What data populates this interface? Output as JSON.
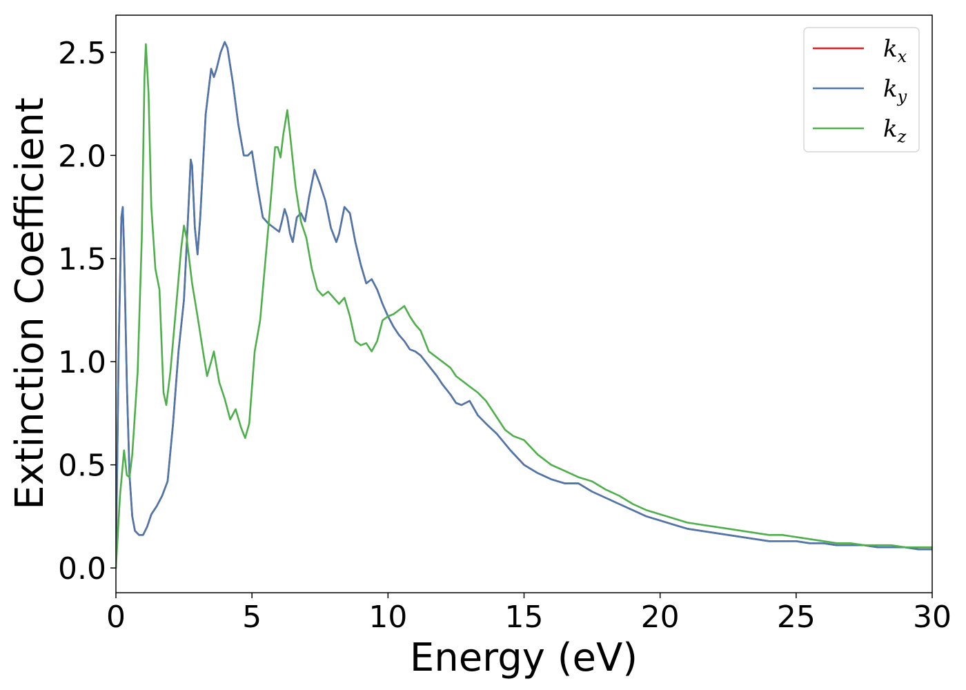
{
  "chart_data": {
    "type": "line",
    "title": "",
    "xlabel": "Energy (eV)",
    "ylabel": "Extinction Coefficient",
    "xlim": [
      0,
      30
    ],
    "ylim": [
      -0.12,
      2.68
    ],
    "xticks": [
      0,
      5,
      10,
      15,
      20,
      25,
      30
    ],
    "xtick_labels": [
      "0",
      "5",
      "10",
      "15",
      "20",
      "25",
      "30"
    ],
    "yticks": [
      0.0,
      0.5,
      1.0,
      1.5,
      2.0,
      2.5
    ],
    "ytick_labels": [
      "0.0",
      "0.5",
      "1.0",
      "1.5",
      "2.0",
      "2.5"
    ],
    "grid": false,
    "legend_position": "top-right",
    "series": [
      {
        "name": "kx",
        "label_main": "k",
        "label_sub": "x",
        "color": "#e41a1c",
        "x": [
          0,
          0.1,
          0.2,
          0.25,
          0.3,
          0.4,
          0.5,
          0.6,
          0.7,
          0.85,
          1.0,
          1.15,
          1.3,
          1.5,
          1.7,
          1.9,
          2.1,
          2.3,
          2.5,
          2.65,
          2.75,
          2.8,
          2.9,
          3.0,
          3.1,
          3.3,
          3.5,
          3.6,
          3.7,
          3.85,
          4.0,
          4.1,
          4.3,
          4.5,
          4.7,
          4.85,
          5.0,
          5.2,
          5.4,
          5.6,
          5.8,
          6.0,
          6.1,
          6.2,
          6.3,
          6.4,
          6.5,
          6.65,
          6.8,
          6.95,
          7.1,
          7.3,
          7.5,
          7.7,
          7.9,
          8.1,
          8.2,
          8.4,
          8.6,
          8.8,
          9.0,
          9.2,
          9.4,
          9.6,
          9.8,
          10.0,
          10.2,
          10.4,
          10.6,
          10.8,
          11.0,
          11.2,
          11.5,
          11.8,
          12.0,
          12.3,
          12.5,
          12.7,
          13.0,
          13.3,
          13.6,
          14.0,
          14.5,
          15.0,
          15.5,
          16.0,
          16.5,
          17.0,
          17.5,
          18.0,
          18.5,
          19.0,
          19.5,
          20.0,
          20.5,
          21.0,
          21.5,
          22.0,
          22.5,
          23.0,
          23.5,
          24.0,
          24.5,
          25.0,
          25.5,
          26.0,
          26.5,
          27.0,
          27.5,
          28.0,
          28.5,
          29.0,
          29.5,
          30.0
        ],
        "y": [
          0.0,
          1.05,
          1.7,
          1.75,
          1.55,
          0.9,
          0.45,
          0.25,
          0.18,
          0.16,
          0.16,
          0.2,
          0.26,
          0.3,
          0.35,
          0.42,
          0.7,
          1.05,
          1.3,
          1.7,
          1.98,
          1.95,
          1.65,
          1.52,
          1.7,
          2.2,
          2.42,
          2.38,
          2.42,
          2.5,
          2.55,
          2.52,
          2.35,
          2.15,
          2.0,
          2.0,
          2.02,
          1.85,
          1.7,
          1.67,
          1.65,
          1.63,
          1.68,
          1.74,
          1.7,
          1.62,
          1.58,
          1.7,
          1.72,
          1.68,
          1.8,
          1.93,
          1.86,
          1.78,
          1.65,
          1.58,
          1.62,
          1.75,
          1.72,
          1.58,
          1.47,
          1.38,
          1.4,
          1.35,
          1.28,
          1.22,
          1.17,
          1.13,
          1.1,
          1.06,
          1.05,
          1.03,
          0.98,
          0.93,
          0.89,
          0.84,
          0.8,
          0.79,
          0.81,
          0.74,
          0.7,
          0.65,
          0.57,
          0.5,
          0.46,
          0.43,
          0.41,
          0.41,
          0.37,
          0.34,
          0.31,
          0.28,
          0.25,
          0.23,
          0.21,
          0.19,
          0.18,
          0.17,
          0.16,
          0.15,
          0.14,
          0.13,
          0.13,
          0.13,
          0.12,
          0.12,
          0.11,
          0.11,
          0.11,
          0.1,
          0.1,
          0.1,
          0.09,
          0.09
        ]
      },
      {
        "name": "ky",
        "label_main": "k",
        "label_sub": "y",
        "color": "#4a78ad",
        "x": [
          0,
          0.1,
          0.2,
          0.25,
          0.3,
          0.4,
          0.5,
          0.6,
          0.7,
          0.85,
          1.0,
          1.15,
          1.3,
          1.5,
          1.7,
          1.9,
          2.1,
          2.3,
          2.5,
          2.65,
          2.75,
          2.8,
          2.9,
          3.0,
          3.1,
          3.3,
          3.5,
          3.6,
          3.7,
          3.85,
          4.0,
          4.1,
          4.3,
          4.5,
          4.7,
          4.85,
          5.0,
          5.2,
          5.4,
          5.6,
          5.8,
          6.0,
          6.1,
          6.2,
          6.3,
          6.4,
          6.5,
          6.65,
          6.8,
          6.95,
          7.1,
          7.3,
          7.5,
          7.7,
          7.9,
          8.1,
          8.2,
          8.4,
          8.6,
          8.8,
          9.0,
          9.2,
          9.4,
          9.6,
          9.8,
          10.0,
          10.2,
          10.4,
          10.6,
          10.8,
          11.0,
          11.2,
          11.5,
          11.8,
          12.0,
          12.3,
          12.5,
          12.7,
          13.0,
          13.3,
          13.6,
          14.0,
          14.5,
          15.0,
          15.5,
          16.0,
          16.5,
          17.0,
          17.5,
          18.0,
          18.5,
          19.0,
          19.5,
          20.0,
          20.5,
          21.0,
          21.5,
          22.0,
          22.5,
          23.0,
          23.5,
          24.0,
          24.5,
          25.0,
          25.5,
          26.0,
          26.5,
          27.0,
          27.5,
          28.0,
          28.5,
          29.0,
          29.5,
          30.0
        ],
        "y": [
          0.0,
          1.05,
          1.7,
          1.75,
          1.55,
          0.9,
          0.45,
          0.25,
          0.18,
          0.16,
          0.16,
          0.2,
          0.26,
          0.3,
          0.35,
          0.42,
          0.7,
          1.05,
          1.3,
          1.7,
          1.98,
          1.95,
          1.65,
          1.52,
          1.7,
          2.2,
          2.42,
          2.38,
          2.42,
          2.5,
          2.55,
          2.52,
          2.35,
          2.15,
          2.0,
          2.0,
          2.02,
          1.85,
          1.7,
          1.67,
          1.65,
          1.63,
          1.68,
          1.74,
          1.7,
          1.62,
          1.58,
          1.7,
          1.72,
          1.68,
          1.8,
          1.93,
          1.86,
          1.78,
          1.65,
          1.58,
          1.62,
          1.75,
          1.72,
          1.58,
          1.47,
          1.38,
          1.4,
          1.35,
          1.28,
          1.22,
          1.17,
          1.13,
          1.1,
          1.06,
          1.05,
          1.03,
          0.98,
          0.93,
          0.89,
          0.84,
          0.8,
          0.79,
          0.81,
          0.74,
          0.7,
          0.65,
          0.57,
          0.5,
          0.46,
          0.43,
          0.41,
          0.41,
          0.37,
          0.34,
          0.31,
          0.28,
          0.25,
          0.23,
          0.21,
          0.19,
          0.18,
          0.17,
          0.16,
          0.15,
          0.14,
          0.13,
          0.13,
          0.13,
          0.12,
          0.12,
          0.11,
          0.11,
          0.11,
          0.1,
          0.1,
          0.1,
          0.09,
          0.09
        ]
      },
      {
        "name": "kz",
        "label_main": "k",
        "label_sub": "z",
        "color": "#4daf4a",
        "x": [
          0,
          0.15,
          0.3,
          0.4,
          0.5,
          0.6,
          0.8,
          0.95,
          1.05,
          1.1,
          1.2,
          1.3,
          1.45,
          1.6,
          1.75,
          1.85,
          2.0,
          2.2,
          2.4,
          2.5,
          2.6,
          2.8,
          3.0,
          3.2,
          3.35,
          3.5,
          3.6,
          3.8,
          4.0,
          4.2,
          4.4,
          4.6,
          4.75,
          4.9,
          5.1,
          5.3,
          5.5,
          5.7,
          5.85,
          5.95,
          6.05,
          6.15,
          6.3,
          6.4,
          6.6,
          6.8,
          7.0,
          7.2,
          7.4,
          7.6,
          7.8,
          8.0,
          8.2,
          8.4,
          8.6,
          8.8,
          9.0,
          9.2,
          9.4,
          9.6,
          9.8,
          10.0,
          10.2,
          10.4,
          10.6,
          10.8,
          11.0,
          11.2,
          11.5,
          11.8,
          12.0,
          12.3,
          12.5,
          12.7,
          13.0,
          13.3,
          13.6,
          14.0,
          14.3,
          14.6,
          15.0,
          15.5,
          16.0,
          16.5,
          17.0,
          17.5,
          18.0,
          18.5,
          19.0,
          19.5,
          20.0,
          20.5,
          21.0,
          21.5,
          22.0,
          22.5,
          23.0,
          23.5,
          24.0,
          24.5,
          25.0,
          25.5,
          26.0,
          26.5,
          27.0,
          27.5,
          28.0,
          28.5,
          29.0,
          29.5,
          30.0
        ],
        "y": [
          0.0,
          0.35,
          0.57,
          0.45,
          0.44,
          0.55,
          0.95,
          1.6,
          2.38,
          2.54,
          2.3,
          1.75,
          1.45,
          1.35,
          0.85,
          0.79,
          0.95,
          1.25,
          1.55,
          1.66,
          1.6,
          1.38,
          1.22,
          1.05,
          0.93,
          1.0,
          1.05,
          0.9,
          0.82,
          0.72,
          0.77,
          0.68,
          0.63,
          0.7,
          1.05,
          1.2,
          1.5,
          1.8,
          2.04,
          2.04,
          1.99,
          2.1,
          2.22,
          2.1,
          1.85,
          1.68,
          1.6,
          1.45,
          1.35,
          1.32,
          1.34,
          1.31,
          1.28,
          1.31,
          1.22,
          1.1,
          1.08,
          1.09,
          1.05,
          1.1,
          1.2,
          1.22,
          1.23,
          1.25,
          1.27,
          1.22,
          1.18,
          1.15,
          1.05,
          1.02,
          1.0,
          0.97,
          0.93,
          0.91,
          0.88,
          0.85,
          0.81,
          0.73,
          0.67,
          0.64,
          0.62,
          0.55,
          0.5,
          0.47,
          0.44,
          0.42,
          0.38,
          0.35,
          0.31,
          0.28,
          0.26,
          0.24,
          0.22,
          0.21,
          0.2,
          0.19,
          0.18,
          0.17,
          0.16,
          0.16,
          0.15,
          0.14,
          0.13,
          0.12,
          0.12,
          0.11,
          0.11,
          0.11,
          0.1,
          0.1,
          0.1
        ]
      }
    ]
  }
}
